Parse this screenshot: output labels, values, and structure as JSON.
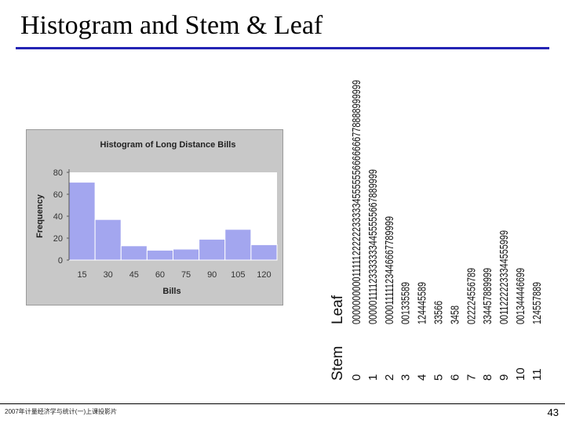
{
  "slide": {
    "title": "Histogram and Stem & Leaf",
    "footer": "2007年计量经济学与统计(一)上课投影片",
    "page_number": "43",
    "accent_color": "#2323b4"
  },
  "chart_data": [
    {
      "type": "bar",
      "title": "Histogram of Long Distance Bills",
      "xlabel": "Bills",
      "ylabel": "Frequency",
      "x_ticks": [
        "15",
        "30",
        "45",
        "60",
        "75",
        "90",
        "105",
        "120"
      ],
      "bins": [
        {
          "start": 7.5,
          "end": 22.5,
          "value": 71
        },
        {
          "start": 22.5,
          "end": 37.5,
          "value": 37
        },
        {
          "start": 37.5,
          "end": 52.5,
          "value": 13
        },
        {
          "start": 52.5,
          "end": 67.5,
          "value": 9
        },
        {
          "start": 67.5,
          "end": 82.5,
          "value": 10
        },
        {
          "start": 82.5,
          "end": 97.5,
          "value": 19
        },
        {
          "start": 97.5,
          "end": 112.5,
          "value": 28
        },
        {
          "start": 112.5,
          "end": 127.5,
          "value": 14
        }
      ],
      "ylim": [
        0,
        80
      ],
      "y_ticks": [
        0,
        20,
        40,
        60,
        80
      ],
      "bar_color": "#a3a6ef",
      "plot_bg": "#ffffff",
      "grid": false
    },
    {
      "type": "table",
      "headers": {
        "stem": "Stem",
        "leaf": "Leaf"
      },
      "rows": [
        {
          "stem": "0",
          "leaf": "0000000000111112222223333345555556666666778888999999"
        },
        {
          "stem": "1",
          "leaf": "000001111233333334455555667889999"
        },
        {
          "stem": "2",
          "leaf": "00001111123446667789999"
        },
        {
          "stem": "3",
          "leaf": "001335589"
        },
        {
          "stem": "4",
          "leaf": "124445589"
        },
        {
          "stem": "5",
          "leaf": "33566"
        },
        {
          "stem": "6",
          "leaf": "3458"
        },
        {
          "stem": "7",
          "leaf": "022224556789"
        },
        {
          "stem": "8",
          "leaf": "334457889999"
        },
        {
          "stem": "9",
          "leaf": "00112222233344555999"
        },
        {
          "stem": "10",
          "leaf": "001344446699"
        },
        {
          "stem": "11",
          "leaf": "124557889"
        }
      ]
    }
  ]
}
